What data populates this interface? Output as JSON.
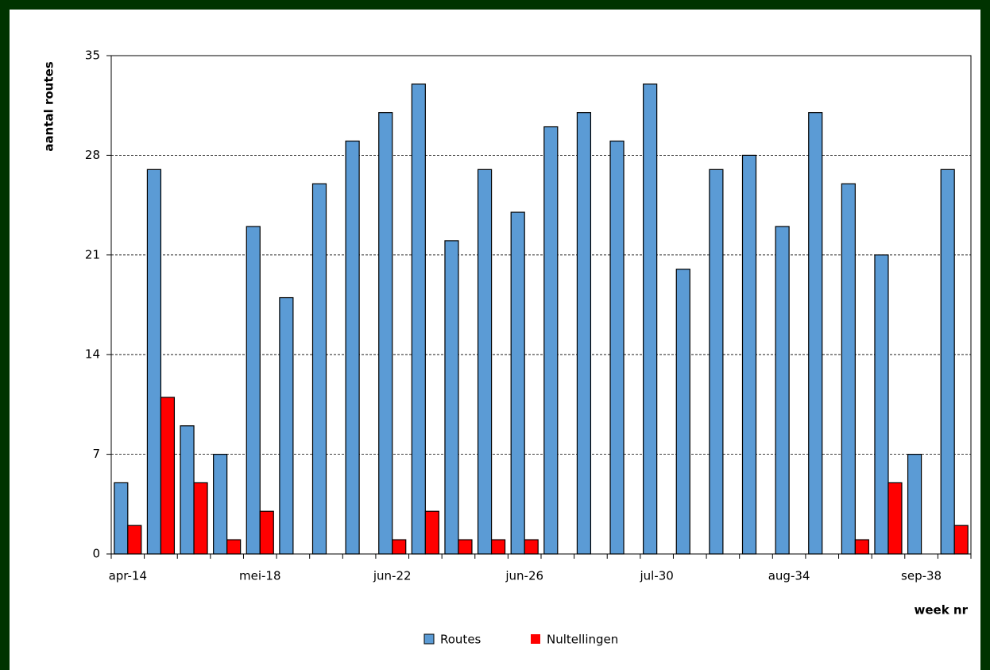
{
  "chart_data": {
    "type": "bar",
    "y_label": "aantal routes",
    "x_label": "week nr",
    "categories": [
      "apr-14",
      null,
      null,
      null,
      "mei-18",
      null,
      null,
      null,
      "jun-22",
      null,
      null,
      null,
      "jun-26",
      null,
      null,
      null,
      "jul-30",
      null,
      null,
      null,
      "aug-34",
      null,
      null,
      null,
      "sep-38",
      null
    ],
    "series": [
      {
        "name": "Routes",
        "color": "#5b9bd5",
        "values": [
          5,
          27,
          9,
          7,
          23,
          18,
          26,
          29,
          31,
          33,
          22,
          27,
          24,
          30,
          31,
          29,
          33,
          20,
          27,
          28,
          23,
          31,
          26,
          21,
          7,
          27
        ]
      },
      {
        "name": "Nultellingen",
        "color": "#ff0000",
        "values": [
          2,
          11,
          5,
          1,
          3,
          0,
          0,
          0,
          1,
          3,
          1,
          1,
          1,
          0,
          0,
          0,
          0,
          0,
          0,
          0,
          0,
          0,
          1,
          5,
          0,
          2
        ]
      }
    ],
    "ylim": [
      0,
      35
    ],
    "yticks": [
      0,
      7,
      14,
      21,
      28,
      35
    ],
    "grid": true
  }
}
